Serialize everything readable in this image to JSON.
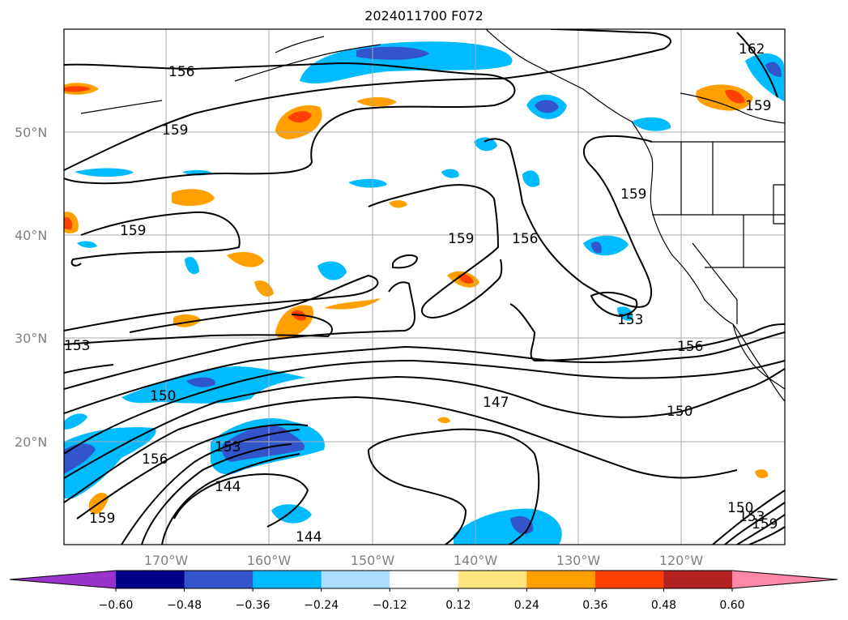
{
  "title": "2024011700 F072",
  "map": {
    "lat_labels": [
      "50°N",
      "40°N",
      "30°N",
      "20°N"
    ],
    "lon_labels": [
      "170°W",
      "160°W",
      "150°W",
      "140°W",
      "130°W",
      "120°W"
    ],
    "contour_labels": [
      "156",
      "159",
      "159",
      "153",
      "150",
      "156",
      "159",
      "153",
      "144",
      "144",
      "147",
      "150",
      "156",
      "153",
      "159",
      "156",
      "159",
      "162",
      "159",
      "150",
      "153",
      "159"
    ]
  },
  "colorbar": {
    "ticks": [
      "−0.60",
      "−0.48",
      "−0.36",
      "−0.24",
      "−0.12",
      "0.12",
      "0.24",
      "0.36",
      "0.48",
      "0.60"
    ],
    "colors": [
      "#9933cc",
      "#000088",
      "#3355cc",
      "#00bbff",
      "#aaddff",
      "#ffffff",
      "#ffe680",
      "#ff9f00",
      "#ff4000",
      "#b22222",
      "#ff88aa"
    ]
  }
}
